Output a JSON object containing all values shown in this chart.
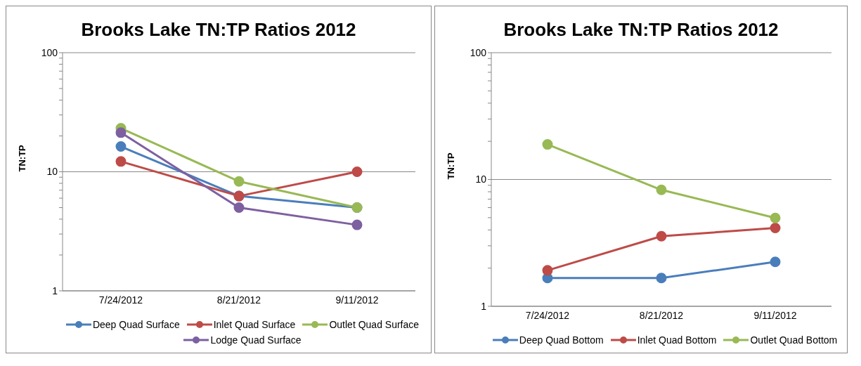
{
  "chart_data": [
    {
      "type": "line",
      "title": "Brooks Lake TN:TP Ratios 2012",
      "ylabel": "TN:TP",
      "categories": [
        "7/24/2012",
        "8/21/2012",
        "9/11/2012"
      ],
      "log": "y",
      "ylim": [
        1,
        100
      ],
      "yticks": [
        1,
        {
          "value": 2,
          "label": null
        },
        {
          "value": 3,
          "label": null
        },
        {
          "value": 4,
          "label": null
        },
        {
          "value": 5,
          "label": null
        },
        {
          "value": 6,
          "label": null
        },
        {
          "value": 7,
          "label": null
        },
        {
          "value": 8,
          "label": null
        },
        {
          "value": 9,
          "label": null
        },
        10,
        {
          "value": 20,
          "label": null
        },
        {
          "value": 30,
          "label": null
        },
        {
          "value": 40,
          "label": null
        },
        {
          "value": 50,
          "label": null
        },
        {
          "value": 60,
          "label": null
        },
        {
          "value": 70,
          "label": null
        },
        {
          "value": 80,
          "label": null
        },
        {
          "value": 90,
          "label": null
        },
        100
      ],
      "grid": "y",
      "legend": "bottom",
      "marker": "circle",
      "series": [
        {
          "name": "Deep Quad Surface",
          "color": "#4a7ebb",
          "values": [
            16.3,
            6.25,
            5.0
          ]
        },
        {
          "name": "Inlet Quad Surface",
          "color": "#be4b48",
          "values": [
            12.2,
            6.25,
            10
          ]
        },
        {
          "name": "Outlet Quad Surface",
          "color": "#98b954",
          "values": [
            23.2,
            8.3,
            5.0
          ]
        },
        {
          "name": "Lodge Quad Surface",
          "color": "#7d60a0",
          "values": [
            21.3,
            5.0,
            3.58
          ]
        }
      ]
    },
    {
      "type": "line",
      "title": "Brooks Lake TN:TP Ratios 2012",
      "ylabel": "TN:TP",
      "categories": [
        "7/24/2012",
        "8/21/2012",
        "9/11/2012"
      ],
      "log": "y",
      "ylim": [
        1,
        100
      ],
      "yticks": [
        1,
        {
          "value": 2,
          "label": null
        },
        {
          "value": 3,
          "label": null
        },
        {
          "value": 4,
          "label": null
        },
        {
          "value": 5,
          "label": null
        },
        {
          "value": 6,
          "label": null
        },
        {
          "value": 7,
          "label": null
        },
        {
          "value": 8,
          "label": null
        },
        {
          "value": 9,
          "label": null
        },
        10,
        {
          "value": 20,
          "label": null
        },
        {
          "value": 30,
          "label": null
        },
        {
          "value": 40,
          "label": null
        },
        {
          "value": 50,
          "label": null
        },
        {
          "value": 60,
          "label": null
        },
        {
          "value": 70,
          "label": null
        },
        {
          "value": 80,
          "label": null
        },
        {
          "value": 90,
          "label": null
        },
        100
      ],
      "grid": "y",
      "legend": "bottom",
      "marker": "circle",
      "series": [
        {
          "name": "Deep Quad Bottom",
          "color": "#4a7ebb",
          "values": [
            1.67,
            1.67,
            2.24
          ]
        },
        {
          "name": "Inlet Quad Bottom",
          "color": "#be4b48",
          "values": [
            1.92,
            3.57,
            4.15
          ]
        },
        {
          "name": "Outlet Quad Bottom",
          "color": "#98b954",
          "values": [
            18.9,
            8.28,
            4.97
          ]
        }
      ]
    }
  ]
}
